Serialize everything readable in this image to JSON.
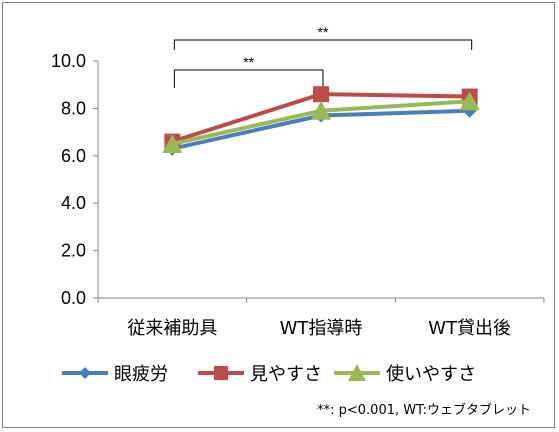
{
  "chart_data": {
    "type": "line",
    "categories": [
      "従来補助具",
      "WT指導時",
      "WT貸出後"
    ],
    "yticks": [
      "0.0",
      "2.0",
      "4.0",
      "6.0",
      "8.0",
      "10.0"
    ],
    "ylim": [
      0,
      10
    ],
    "ytick_step": 2,
    "grid": false,
    "legend_position": "bottom",
    "series": [
      {
        "name": "眼疲労",
        "color": "#4a7ebb",
        "marker": "diamond",
        "values": [
          6.3,
          7.7,
          7.9
        ]
      },
      {
        "name": "見やすさ",
        "color": "#be4b48",
        "marker": "square",
        "values": [
          6.6,
          8.6,
          8.5
        ]
      },
      {
        "name": "使いやすさ",
        "color": "#98b954",
        "marker": "triangle",
        "values": [
          6.5,
          7.9,
          8.3
        ]
      }
    ],
    "significance": [
      {
        "label": "**",
        "from": "従来補助具",
        "to": "WT指導時"
      },
      {
        "label": "**",
        "from": "従来補助具",
        "to": "WT貸出後"
      }
    ],
    "footnote": "**: p<0.001,  WT:ウェブタブレット"
  }
}
